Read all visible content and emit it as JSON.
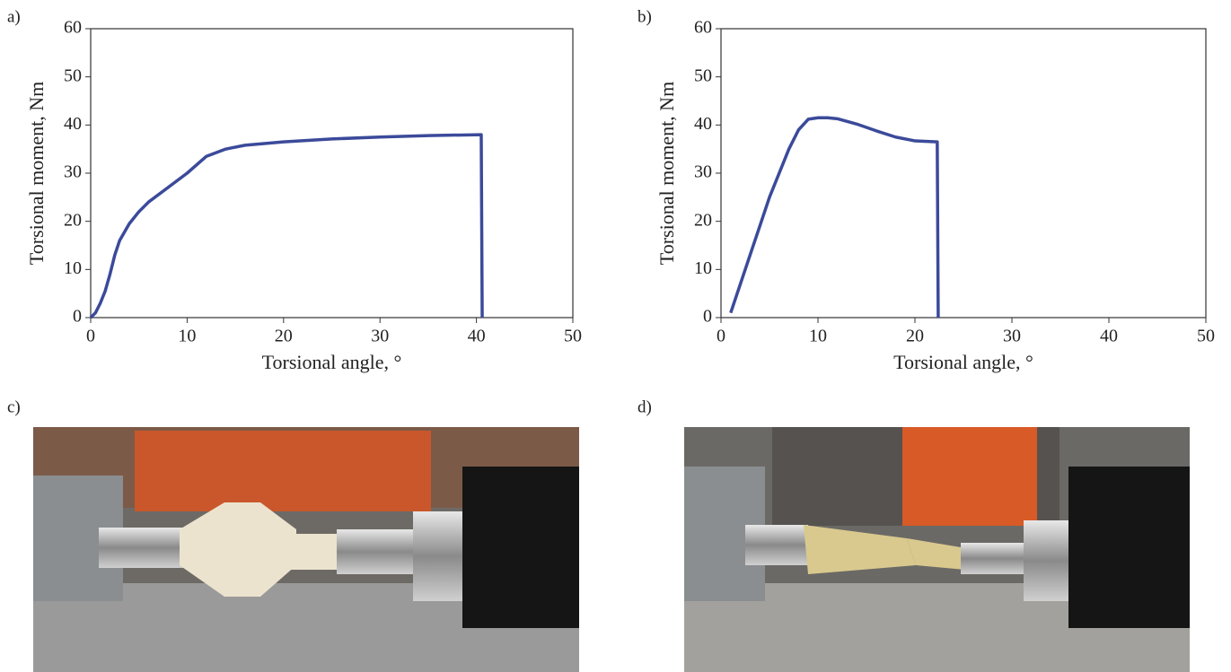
{
  "chart_data": [
    {
      "type": "line",
      "label": "a)",
      "x_label": "Torsional angle, °",
      "y_label": "Torsional moment, Nm",
      "x": [
        0,
        0.5,
        1,
        1.5,
        2,
        2.5,
        3,
        4,
        5,
        6,
        8,
        10,
        12,
        14,
        16,
        20,
        25,
        30,
        35,
        40.5,
        40.6
      ],
      "values": [
        0,
        1,
        3,
        5.5,
        9,
        13,
        16,
        19.5,
        22,
        24,
        27,
        30,
        33.5,
        35,
        35.8,
        36.5,
        37.1,
        37.5,
        37.8,
        38,
        0
      ],
      "color": "#3b4a9a",
      "xlim": [
        0,
        50
      ],
      "ylim": [
        0,
        60
      ],
      "xticks": [
        0,
        10,
        20,
        30,
        40,
        50
      ],
      "yticks": [
        0,
        10,
        20,
        30,
        40,
        50,
        60
      ]
    },
    {
      "type": "line",
      "label": "b)",
      "x_label": "Torsional angle, °",
      "y_label": "Torsional moment, Nm",
      "x": [
        1,
        2,
        3,
        4,
        5,
        6,
        7,
        8,
        9,
        10,
        11,
        12,
        14,
        16,
        18,
        20,
        22.3,
        22.4
      ],
      "values": [
        1,
        7,
        13,
        19,
        25,
        30,
        35,
        39,
        41.2,
        41.5,
        41.5,
        41.3,
        40.2,
        38.8,
        37.5,
        36.7,
        36.5,
        0
      ],
      "color": "#3b4a9a",
      "xlim": [
        0,
        50
      ],
      "ylim": [
        0,
        60
      ],
      "xticks": [
        0,
        10,
        20,
        30,
        40,
        50
      ],
      "yticks": [
        0,
        10,
        20,
        30,
        40,
        50,
        60
      ]
    }
  ],
  "photos": [
    {
      "label": "c)"
    },
    {
      "label": "d)"
    }
  ]
}
